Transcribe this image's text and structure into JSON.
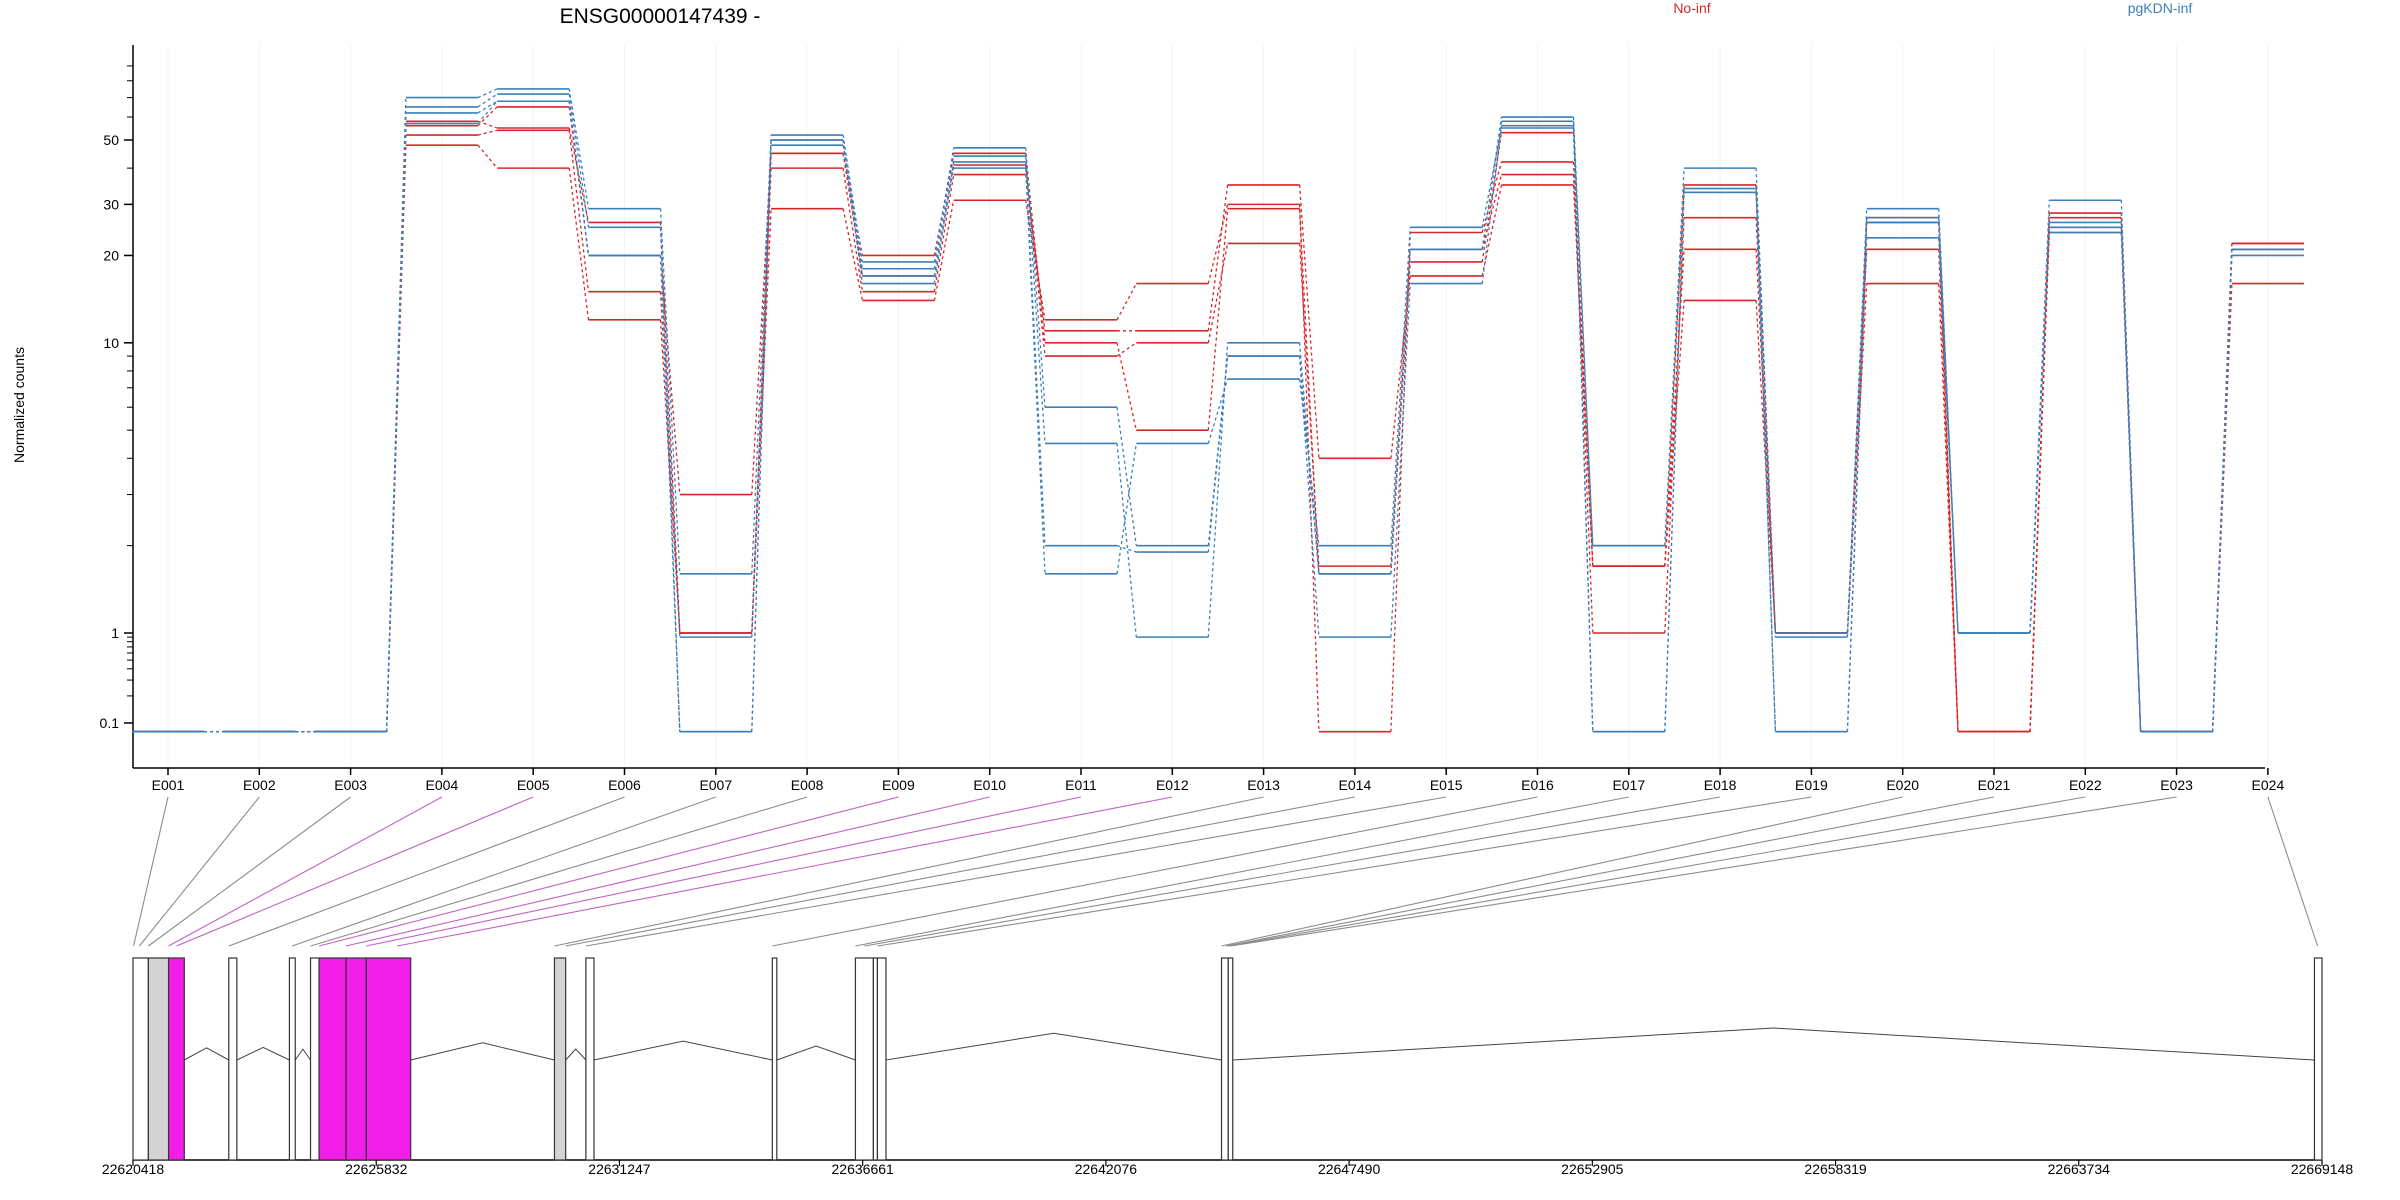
{
  "chart_data": {
    "type": "line",
    "title": "ENSG00000147439 -",
    "ylabel": "Normalized counts",
    "xlabel": "",
    "y_scale": "log",
    "ylim": [
      0.08,
      140
    ],
    "yticks": [
      0.1,
      1,
      10,
      20,
      30,
      50
    ],
    "ytick_labels": [
      "0.1",
      "1",
      "10",
      "20",
      "30",
      "50"
    ],
    "zero_floor": 0.08,
    "grid": "vertical",
    "legend": "top",
    "categories": [
      "E001",
      "E002",
      "E003",
      "E004",
      "E005",
      "E006",
      "E007",
      "E008",
      "E009",
      "E010",
      "E011",
      "E012",
      "E013",
      "E014",
      "E015",
      "E016",
      "E017",
      "E018",
      "E019",
      "E020",
      "E021",
      "E022",
      "E023",
      "E024"
    ],
    "groups": [
      {
        "name": "No-inf",
        "color": "#d62728"
      },
      {
        "name": "pgKDN-inf",
        "color": "#3c7fb8"
      }
    ],
    "series": [
      {
        "group": "No-inf",
        "values": [
          0,
          0,
          0,
          48,
          40,
          12,
          1,
          29,
          14,
          31,
          12,
          16,
          30,
          0,
          24,
          42,
          1,
          27,
          1,
          16,
          0,
          25,
          0,
          16
        ]
      },
      {
        "group": "No-inf",
        "values": [
          0,
          0,
          0,
          52,
          54,
          15,
          1,
          40,
          15,
          38,
          11,
          11,
          35,
          4,
          17,
          35,
          1.7,
          35,
          1,
          21,
          0,
          27,
          0,
          21
        ]
      },
      {
        "group": "No-inf",
        "values": [
          0,
          0,
          0,
          56,
          65,
          20,
          3,
          45,
          17,
          41,
          9,
          10,
          22,
          1.7,
          21,
          38,
          1.7,
          21,
          1,
          26,
          0,
          28,
          0,
          22
        ]
      },
      {
        "group": "No-inf",
        "values": [
          0,
          0,
          0,
          58,
          55,
          26,
          1,
          45,
          20,
          45,
          10,
          5,
          29,
          1.6,
          19,
          53,
          1.7,
          14,
          1,
          27,
          0,
          24,
          0,
          22
        ]
      },
      {
        "group": "pgKDN-inf",
        "values": [
          0,
          0,
          0,
          70,
          75,
          29,
          1.6,
          52,
          19,
          47,
          6,
          2,
          9,
          1.6,
          21,
          60,
          2,
          33,
          1,
          29,
          1,
          31,
          0,
          20
        ]
      },
      {
        "group": "pgKDN-inf",
        "values": [
          0,
          0,
          0,
          65,
          72,
          25,
          0,
          50,
          18,
          44,
          4.5,
          0.9,
          10,
          1.6,
          21,
          58,
          0,
          34,
          0,
          27,
          1,
          25,
          0,
          21
        ]
      },
      {
        "group": "pgKDN-inf",
        "values": [
          0,
          0,
          0,
          62,
          68,
          20,
          0.9,
          48,
          17,
          40,
          1.6,
          4.5,
          7.5,
          2,
          25,
          55,
          0,
          33,
          0,
          23,
          1,
          24,
          0,
          21
        ]
      },
      {
        "group": "pgKDN-inf",
        "values": [
          0,
          0,
          0,
          57,
          68,
          20,
          0,
          50,
          16,
          42,
          2,
          1.9,
          9,
          0.9,
          16,
          56,
          2,
          40,
          0.9,
          26,
          1,
          26,
          0,
          21
        ]
      }
    ]
  },
  "gene_model": {
    "coordinate_labels": [
      "22620418",
      "22625832",
      "22631247",
      "22636661",
      "22642076",
      "22647490",
      "22652905",
      "22658319",
      "22663734",
      "22669148"
    ],
    "colors": {
      "exon": "#d3d3d3",
      "highlight": "#f21ee8",
      "connector_default": "#8c8c8c",
      "connector_highlight": "#c062c6"
    },
    "exons": [
      {
        "start": 22620418,
        "end": 22620760,
        "color": "white"
      },
      {
        "start": 22620760,
        "end": 22621210,
        "color": "gray"
      },
      {
        "start": 22621210,
        "end": 22621560,
        "color": "pink"
      },
      {
        "start": 22622550,
        "end": 22622730,
        "color": "white"
      },
      {
        "start": 22623900,
        "end": 22624030,
        "color": "white"
      },
      {
        "start": 22624370,
        "end": 22624560,
        "color": "white"
      },
      {
        "start": 22624560,
        "end": 22625160,
        "color": "pink"
      },
      {
        "start": 22625160,
        "end": 22625610,
        "color": "pink"
      },
      {
        "start": 22625610,
        "end": 22626600,
        "color": "pink"
      },
      {
        "start": 22629800,
        "end": 22630050,
        "color": "gray"
      },
      {
        "start": 22630500,
        "end": 22630680,
        "color": "white"
      },
      {
        "start": 22634650,
        "end": 22634750,
        "color": "white"
      },
      {
        "start": 22636500,
        "end": 22636900,
        "color": "white"
      },
      {
        "start": 22636900,
        "end": 22636990,
        "color": "white"
      },
      {
        "start": 22636990,
        "end": 22637180,
        "color": "white"
      },
      {
        "start": 22644650,
        "end": 22644800,
        "color": "white"
      },
      {
        "start": 22644800,
        "end": 22644900,
        "color": "white"
      },
      {
        "start": 22668980,
        "end": 22669148,
        "color": "white"
      }
    ],
    "exon_links": [
      {
        "exon": "E001",
        "pos": 22620430,
        "highlight": false
      },
      {
        "exon": "E002",
        "pos": 22620560,
        "highlight": false
      },
      {
        "exon": "E003",
        "pos": 22620760,
        "highlight": false
      },
      {
        "exon": "E004",
        "pos": 22621210,
        "highlight": true
      },
      {
        "exon": "E005",
        "pos": 22621390,
        "highlight": true
      },
      {
        "exon": "E006",
        "pos": 22622550,
        "highlight": false
      },
      {
        "exon": "E007",
        "pos": 22623960,
        "highlight": false
      },
      {
        "exon": "E008",
        "pos": 22624370,
        "highlight": false
      },
      {
        "exon": "E009",
        "pos": 22624560,
        "highlight": true
      },
      {
        "exon": "E010",
        "pos": 22625160,
        "highlight": true
      },
      {
        "exon": "E011",
        "pos": 22625610,
        "highlight": true
      },
      {
        "exon": "E012",
        "pos": 22626300,
        "highlight": true
      },
      {
        "exon": "E013",
        "pos": 22629800,
        "highlight": false
      },
      {
        "exon": "E014",
        "pos": 22630050,
        "highlight": false
      },
      {
        "exon": "E015",
        "pos": 22630500,
        "highlight": false
      },
      {
        "exon": "E016",
        "pos": 22634650,
        "highlight": false
      },
      {
        "exon": "E017",
        "pos": 22636500,
        "highlight": false
      },
      {
        "exon": "E018",
        "pos": 22636700,
        "highlight": false
      },
      {
        "exon": "E019",
        "pos": 22636990,
        "highlight": false
      },
      {
        "exon": "E020",
        "pos": 22644650,
        "highlight": false
      },
      {
        "exon": "E021",
        "pos": 22644750,
        "highlight": false
      },
      {
        "exon": "E022",
        "pos": 22644800,
        "highlight": false
      },
      {
        "exon": "E023",
        "pos": 22644860,
        "highlight": false
      },
      {
        "exon": "E024",
        "pos": 22669050,
        "highlight": false
      }
    ]
  }
}
